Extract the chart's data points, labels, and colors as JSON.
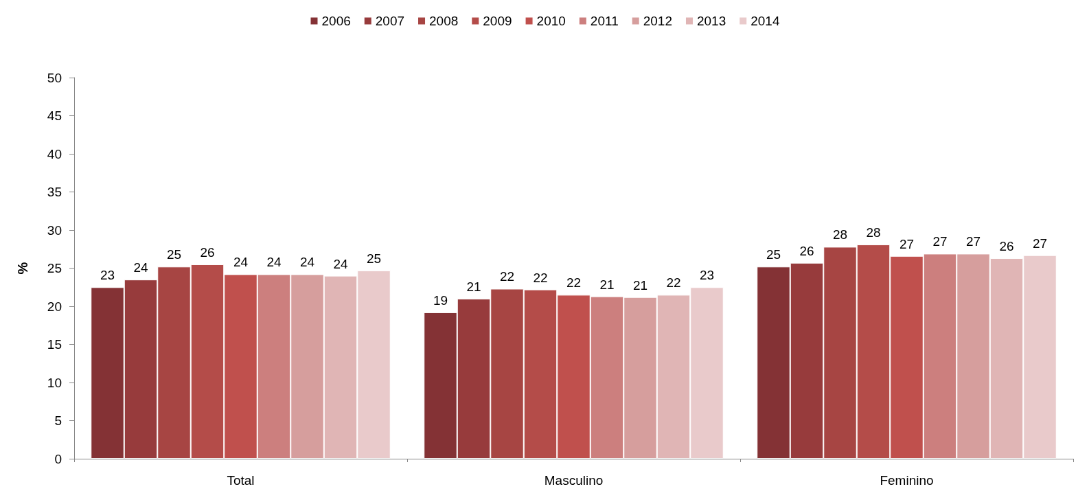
{
  "chart_data": {
    "type": "bar",
    "ylabel": "%",
    "categories": [
      "Total",
      "Masculino",
      "Feminino"
    ],
    "ylim": [
      0,
      50
    ],
    "yticks": [
      0,
      5,
      10,
      15,
      20,
      25,
      30,
      35,
      40,
      45,
      50
    ],
    "grid": false,
    "legend": "top",
    "series": [
      {
        "name": "2006",
        "color": "#843235",
        "values": [
          22.5,
          19.2,
          25.2
        ],
        "value_labels": [
          "23",
          "19",
          "25"
        ]
      },
      {
        "name": "2007",
        "color": "#973b3c",
        "values": [
          23.5,
          21.0,
          25.7
        ],
        "value_labels": [
          "24",
          "21",
          "26"
        ]
      },
      {
        "name": "2008",
        "color": "#a74543",
        "values": [
          25.2,
          22.3,
          27.8
        ],
        "value_labels": [
          "25",
          "22",
          "28"
        ]
      },
      {
        "name": "2009",
        "color": "#b44c49",
        "values": [
          25.5,
          22.2,
          28.1
        ],
        "value_labels": [
          "26",
          "22",
          "28"
        ]
      },
      {
        "name": "2010",
        "color": "#c0504d",
        "values": [
          24.2,
          21.5,
          26.6
        ],
        "value_labels": [
          "24",
          "22",
          "27"
        ]
      },
      {
        "name": "2011",
        "color": "#cc7f7e",
        "values": [
          24.2,
          21.3,
          26.9
        ],
        "value_labels": [
          "24",
          "21",
          "27"
        ]
      },
      {
        "name": "2012",
        "color": "#d69e9d",
        "values": [
          24.2,
          21.2,
          26.9
        ],
        "value_labels": [
          "24",
          "21",
          "27"
        ]
      },
      {
        "name": "2013",
        "color": "#e0b5b5",
        "values": [
          24.0,
          21.5,
          26.3
        ],
        "value_labels": [
          "24",
          "22",
          "26"
        ]
      },
      {
        "name": "2014",
        "color": "#e9cacb",
        "values": [
          24.7,
          22.5,
          26.7
        ],
        "value_labels": [
          "25",
          "23",
          "27"
        ]
      }
    ]
  }
}
